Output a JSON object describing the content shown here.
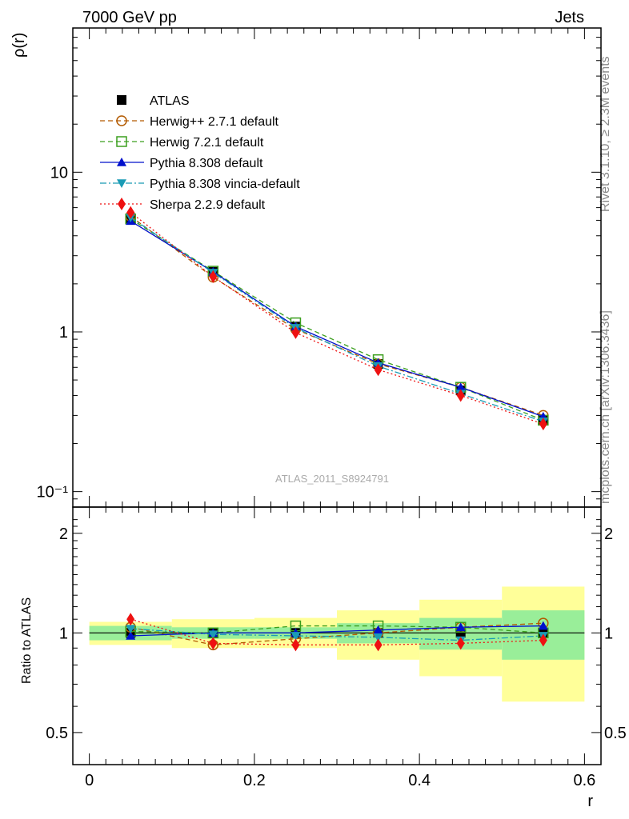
{
  "header": {
    "left": "7000 GeV pp",
    "right": "Jets"
  },
  "side_labels": {
    "rivet": "Rivet 3.1.10, ≥ 2.3M events",
    "mcplots": "mcplots.cern.ch [arXiv:1306.3436]"
  },
  "watermark": "ATLAS_2011_S8924791",
  "chart_data": [
    {
      "type": "line",
      "panel": "main",
      "ylabel": "ρ(r)",
      "xlabel": "",
      "xlim": [
        -0.02,
        0.62
      ],
      "ylim": [
        0.08,
        80
      ],
      "yscale": "log",
      "yticks": [
        0.1,
        1,
        10
      ],
      "ytick_labels": [
        "10⁻¹",
        "1",
        "10"
      ],
      "x": [
        0.05,
        0.15,
        0.25,
        0.35,
        0.45,
        0.55
      ],
      "series": [
        {
          "name": "ATLAS",
          "color": "#000000",
          "marker": "square-filled",
          "style": "none",
          "values": [
            5.05,
            2.38,
            1.08,
            0.63,
            0.43,
            0.28
          ]
        },
        {
          "name": "Herwig++ 2.7.1 default",
          "color": "#b35a00",
          "marker": "circle-open",
          "style": "dashed",
          "values": [
            5.3,
            2.2,
            1.04,
            0.63,
            0.45,
            0.3
          ]
        },
        {
          "name": "Herwig 7.2.1 default",
          "color": "#3c9f1e",
          "marker": "square-open",
          "style": "dashed",
          "values": [
            5.1,
            2.4,
            1.14,
            0.67,
            0.45,
            0.28
          ]
        },
        {
          "name": "Pythia 8.308 default",
          "color": "#0010cc",
          "marker": "triangle-up",
          "style": "solid",
          "values": [
            4.95,
            2.38,
            1.08,
            0.64,
            0.45,
            0.295
          ]
        },
        {
          "name": "Pythia 8.308 vincia-default",
          "color": "#1a9bb5",
          "marker": "triangle-down",
          "style": "dashdot",
          "values": [
            5.2,
            2.35,
            1.06,
            0.61,
            0.41,
            0.275
          ]
        },
        {
          "name": "Sherpa 2.2.9 default",
          "color": "#ee1111",
          "marker": "diamond",
          "style": "dotted",
          "values": [
            5.6,
            2.22,
            0.99,
            0.58,
            0.4,
            0.265
          ]
        }
      ],
      "legend_position": "top-left"
    },
    {
      "type": "line",
      "panel": "ratio",
      "ylabel": "Ratio to ATLAS",
      "xlabel": "r",
      "xlim": [
        -0.02,
        0.62
      ],
      "ylim": [
        0.4,
        2.4
      ],
      "yscale": "log",
      "yticks": [
        0.5,
        1,
        2
      ],
      "ytick_labels": [
        "0.5",
        "1",
        "2"
      ],
      "xticks": [
        0,
        0.2,
        0.4,
        0.6
      ],
      "xtick_labels": [
        "0",
        "0.2",
        "0.4",
        "0.6"
      ],
      "bins": [
        [
          0.0,
          0.1
        ],
        [
          0.1,
          0.2
        ],
        [
          0.2,
          0.3
        ],
        [
          0.3,
          0.4
        ],
        [
          0.4,
          0.5
        ],
        [
          0.5,
          0.6
        ]
      ],
      "band_stat": [
        [
          0.95,
          1.05
        ],
        [
          0.96,
          1.04
        ],
        [
          0.96,
          1.04
        ],
        [
          0.93,
          1.07
        ],
        [
          0.89,
          1.11
        ],
        [
          0.83,
          1.17
        ]
      ],
      "band_total": [
        [
          0.92,
          1.08
        ],
        [
          0.9,
          1.1
        ],
        [
          0.9,
          1.11
        ],
        [
          0.83,
          1.17
        ],
        [
          0.74,
          1.26
        ],
        [
          0.62,
          1.38
        ]
      ],
      "band_stat_color": "#99ee99",
      "band_total_color": "#ffff99",
      "x": [
        0.05,
        0.15,
        0.25,
        0.35,
        0.45,
        0.55
      ],
      "series": [
        {
          "name": "Herwig++ 2.7.1 default",
          "color": "#b35a00",
          "marker": "circle-open",
          "style": "dashed",
          "values": [
            1.04,
            0.92,
            0.96,
            1.0,
            1.04,
            1.07
          ]
        },
        {
          "name": "Herwig 7.2.1 default",
          "color": "#3c9f1e",
          "marker": "square-open",
          "style": "dashed",
          "values": [
            1.01,
            1.0,
            1.05,
            1.05,
            1.04,
            1.0
          ]
        },
        {
          "name": "Pythia 8.308 default",
          "color": "#0010cc",
          "marker": "triangle-up",
          "style": "solid",
          "values": [
            0.98,
            1.0,
            1.0,
            1.02,
            1.04,
            1.05
          ]
        },
        {
          "name": "Pythia 8.308 vincia-default",
          "color": "#1a9bb5",
          "marker": "triangle-down",
          "style": "dashdot",
          "values": [
            1.03,
            0.99,
            0.98,
            0.97,
            0.95,
            0.98
          ]
        },
        {
          "name": "Sherpa 2.2.9 default",
          "color": "#ee1111",
          "marker": "diamond",
          "style": "dotted",
          "values": [
            1.1,
            0.93,
            0.92,
            0.92,
            0.93,
            0.95
          ]
        }
      ]
    }
  ]
}
